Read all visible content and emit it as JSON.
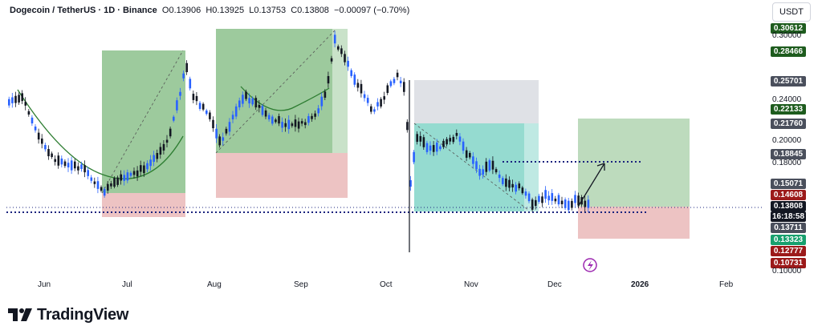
{
  "header": {
    "symbol": "Dogecoin / TetherUS · 1D · Binance",
    "open": "O0.13906",
    "high": "H0.13925",
    "low": "L0.13753",
    "close": "C0.13808",
    "change": "−0.00097 (−0.70%)"
  },
  "currency_button": "USDT",
  "x_axis": [
    "Jun",
    "Jul",
    "Aug",
    "Sep",
    "Oct",
    "Nov",
    "Dec",
    "2026",
    "Feb"
  ],
  "y_axis_ticks": [
    "0.30000",
    "0.24000",
    "0.20000",
    "0.18000",
    "0.10000"
  ],
  "price_tags": [
    {
      "value": "0.30612",
      "color": "#1e5c1e"
    },
    {
      "value": "0.28466",
      "color": "#1e5c1e"
    },
    {
      "value": "0.25701",
      "color": "#4a4f5c"
    },
    {
      "value": "0.22133",
      "color": "#1e5c1e"
    },
    {
      "value": "0.21760",
      "color": "#4a4f5c"
    },
    {
      "value": "0.18845",
      "color": "#4a4f5c"
    },
    {
      "value": "0.15071",
      "color": "#4a4f5c"
    },
    {
      "value": "0.14608",
      "color": "#9c1a1a"
    },
    {
      "value": "0.13808",
      "color": "#131722"
    },
    {
      "value": "16:18:58",
      "color": "#131722"
    },
    {
      "value": "0.13711",
      "color": "#4a4f5c"
    },
    {
      "value": "0.13323",
      "color": "#18a06e"
    },
    {
      "value": "0.12777",
      "color": "#9c1a1a"
    },
    {
      "value": "0.10731",
      "color": "#9c1a1a"
    }
  ],
  "branding": "TradingView",
  "colors": {
    "up_candle": "#2962ff",
    "down_candle": "#131722",
    "green_zone": "#7cb87c",
    "red_zone": "#e8b4b4",
    "gray_zone": "#d1d4dc",
    "teal_zone": "#4fc3b0",
    "curve": "#2e7d32"
  }
}
